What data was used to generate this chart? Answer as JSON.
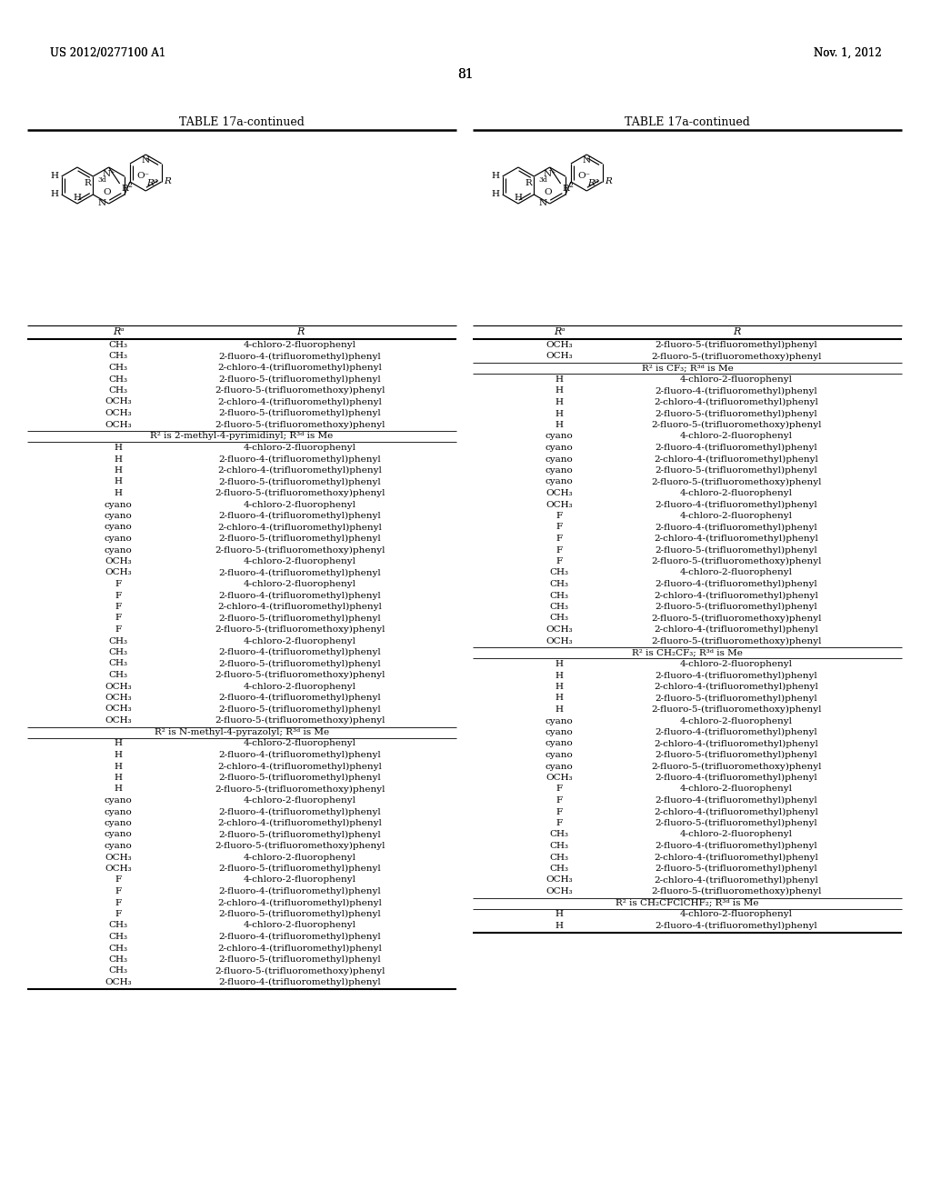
{
  "page_header_left": "US 2012/0277100 A1",
  "page_header_right": "Nov. 1, 2012",
  "page_number": "81",
  "table_title": "TABLE 17a-continued",
  "background_color": "#ffffff",
  "text_color": "#000000"
}
